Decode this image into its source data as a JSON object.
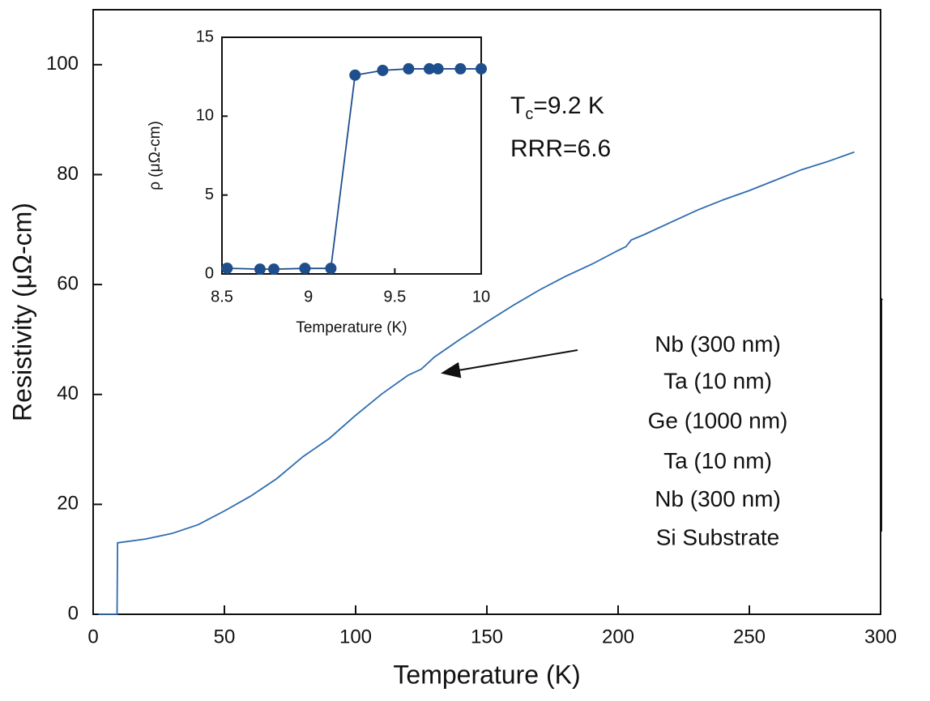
{
  "chart_data": [
    {
      "type": "line",
      "x_label": "Temperature (K)",
      "y_label": "Resistivity (μΩ-cm)",
      "x": [
        2,
        9.1,
        9.3,
        20,
        30,
        40,
        50,
        60,
        70,
        80,
        90,
        100,
        110,
        120,
        125,
        130,
        140,
        150,
        160,
        170,
        180,
        190,
        200,
        203,
        205,
        210,
        220,
        230,
        240,
        250,
        260,
        270,
        280,
        290
      ],
      "values": [
        0,
        0,
        13,
        13.7,
        14.7,
        16.3,
        18.8,
        21.5,
        24.7,
        28.7,
        32,
        36.2,
        40.1,
        43.5,
        44.6,
        46.8,
        50.1,
        53.2,
        56.2,
        59,
        61.5,
        63.7,
        66.2,
        66.9,
        68.1,
        69.1,
        71.3,
        73.5,
        75.4,
        77.1,
        79,
        80.9,
        82.4,
        84.1
      ],
      "color": "#2f6db0",
      "xlim": [
        0,
        300
      ],
      "xticks": [
        0,
        50,
        100,
        150,
        200,
        250,
        300
      ],
      "ylim": [
        0,
        110
      ],
      "yticks": [
        0,
        20,
        40,
        60,
        80,
        100
      ],
      "annotations": [
        [
          "T",
          "c",
          "=9.2 K"
        ],
        [
          "RRR=6.6"
        ]
      ],
      "layers": [
        "Nb (300 nm)",
        "Ta (10 nm)",
        "Ge (1000 nm)",
        "Ta (10 nm)",
        "Nb (300 nm)",
        "Si Substrate"
      ]
    },
    {
      "type": "line",
      "x_label": "Temperature (K)",
      "y_label": "ρ (μΩ-cm)",
      "x": [
        8.53,
        8.72,
        8.8,
        8.98,
        9.13,
        9.27,
        9.43,
        9.58,
        9.7,
        9.75,
        9.88,
        10.0
      ],
      "values": [
        0.36,
        0.3,
        0.3,
        0.35,
        0.35,
        12.6,
        12.9,
        13.0,
        13.0,
        13.0,
        13.0,
        13.0
      ],
      "color": "#1f4e8c",
      "markers": true,
      "xlim": [
        8.5,
        10
      ],
      "xticks": [
        8.5,
        9,
        9.5,
        10
      ],
      "ylim": [
        0,
        15
      ],
      "yticks": [
        0,
        5,
        10,
        15
      ]
    }
  ]
}
